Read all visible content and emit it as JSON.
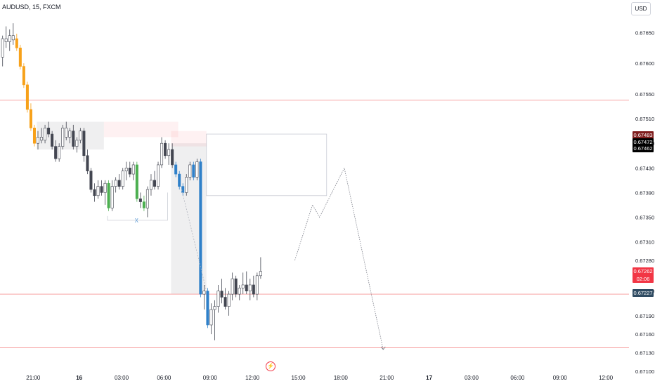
{
  "header": {
    "symbol_label": "AUDUSD, 15, FXCM",
    "currency_button": "USD"
  },
  "colors": {
    "bull": "#ffffff",
    "bear": "#434651",
    "orange": "#f7a11a",
    "green": "#4caf50",
    "blue": "#2f80c9",
    "grey": "#b2b5be",
    "h_line": "#f7a5a5",
    "tag_dark_red": "#7f1d1d",
    "tag_black": "#000000",
    "tag_red": "#f23645",
    "tag_slate": "#2f4b62"
  },
  "icons": {
    "bottom_marker": "lightning-icon"
  },
  "chart_data": {
    "type": "candlestick",
    "y_range": [
      0.6711,
      0.6768
    ],
    "y_ticks": [
      "0.67650",
      "0.67600",
      "0.67550",
      "0.67510",
      "0.67470",
      "0.67430",
      "0.67390",
      "0.67350",
      "0.67310",
      "0.67280",
      "0.67230",
      "0.67190",
      "0.67160",
      "0.67130",
      "0.67100"
    ],
    "x_labels": [
      {
        "label": "21:00",
        "bar": 9,
        "bold": false
      },
      {
        "label": "16",
        "bar": 22,
        "bold": true
      },
      {
        "label": "03:00",
        "bar": 34,
        "bold": false
      },
      {
        "label": "06:00",
        "bar": 46,
        "bold": false
      },
      {
        "label": "09:00",
        "bar": 59,
        "bold": false
      },
      {
        "label": "12:00",
        "bar": 71,
        "bold": false
      },
      {
        "label": "15:00",
        "bar": 84,
        "bold": false
      },
      {
        "label": "18:00",
        "bar": 96,
        "bold": false
      },
      {
        "label": "21:00",
        "bar": 109,
        "bold": false
      },
      {
        "label": "17",
        "bar": 121,
        "bold": true
      },
      {
        "label": "03:00",
        "bar": 133,
        "bold": false
      },
      {
        "label": "06:00",
        "bar": 146,
        "bold": false
      },
      {
        "label": "09:00",
        "bar": 158,
        "bold": false
      },
      {
        "label": "12:00",
        "bar": 171,
        "bold": false
      }
    ],
    "candles": [
      [
        0.6761,
        0.67645,
        0.67595,
        0.6764,
        "bull"
      ],
      [
        0.6764,
        0.6766,
        0.67625,
        0.67635,
        "bull"
      ],
      [
        0.67635,
        0.67655,
        0.6762,
        0.67645,
        "bull"
      ],
      [
        0.67645,
        0.67665,
        0.6763,
        0.67638,
        "bull"
      ],
      [
        0.6764,
        0.67648,
        0.6762,
        0.67625,
        "orange"
      ],
      [
        0.67625,
        0.6763,
        0.6759,
        0.67595,
        "orange"
      ],
      [
        0.67595,
        0.676,
        0.6756,
        0.67565,
        "orange"
      ],
      [
        0.67565,
        0.6757,
        0.6752,
        0.67525,
        "orange"
      ],
      [
        0.67525,
        0.67535,
        0.6749,
        0.67495,
        "orange"
      ],
      [
        0.67495,
        0.675,
        0.67465,
        0.6747,
        "orange"
      ],
      [
        0.6747,
        0.6749,
        0.6746,
        0.6748,
        "bull"
      ],
      [
        0.6748,
        0.67495,
        0.6747,
        0.67475,
        "bull"
      ],
      [
        0.67475,
        0.675,
        0.6747,
        0.67495,
        "bull"
      ],
      [
        0.67495,
        0.67505,
        0.6748,
        0.67485,
        "bear"
      ],
      [
        0.67485,
        0.6749,
        0.6746,
        0.67465,
        "bear"
      ],
      [
        0.67465,
        0.67475,
        0.6744,
        0.67445,
        "bear"
      ],
      [
        0.67445,
        0.6747,
        0.6744,
        0.67465,
        "bull"
      ],
      [
        0.67465,
        0.675,
        0.6746,
        0.67495,
        "bull"
      ],
      [
        0.67495,
        0.67505,
        0.67475,
        0.6748,
        "bull"
      ],
      [
        0.6748,
        0.67495,
        0.6747,
        0.6749,
        "bull"
      ],
      [
        0.6749,
        0.675,
        0.6746,
        0.67465,
        "bear"
      ],
      [
        0.67465,
        0.6748,
        0.67455,
        0.67475,
        "bull"
      ],
      [
        0.67475,
        0.67495,
        0.6747,
        0.6749,
        "bull"
      ],
      [
        0.6749,
        0.67495,
        0.6744,
        0.6745,
        "bear"
      ],
      [
        0.6745,
        0.6746,
        0.6742,
        0.67425,
        "bear"
      ],
      [
        0.67425,
        0.6743,
        0.6739,
        0.67395,
        "bear"
      ],
      [
        0.67395,
        0.67405,
        0.67375,
        0.67385,
        "bear"
      ],
      [
        0.67385,
        0.6741,
        0.6738,
        0.674,
        "bull"
      ],
      [
        0.674,
        0.6741,
        0.67385,
        0.6739,
        "bear"
      ],
      [
        0.6739,
        0.6741,
        0.6737,
        0.67405,
        "bull"
      ],
      [
        0.67405,
        0.6741,
        0.6736,
        0.67365,
        "green"
      ],
      [
        0.67365,
        0.6741,
        0.6736,
        0.674,
        "bull"
      ],
      [
        0.674,
        0.67415,
        0.6739,
        0.6741,
        "bull"
      ],
      [
        0.6741,
        0.6742,
        0.67395,
        0.674,
        "bear"
      ],
      [
        0.674,
        0.6743,
        0.67395,
        0.67425,
        "bull"
      ],
      [
        0.67425,
        0.6744,
        0.6741,
        0.6743,
        "bull"
      ],
      [
        0.6743,
        0.6744,
        0.67415,
        0.6742,
        "bear"
      ],
      [
        0.6742,
        0.6744,
        0.6741,
        0.67435,
        "bull"
      ],
      [
        0.67435,
        0.6744,
        0.67375,
        0.6738,
        "green"
      ],
      [
        0.6738,
        0.6739,
        0.67365,
        0.67375,
        "bear"
      ],
      [
        0.67375,
        0.67385,
        0.6736,
        0.67365,
        "green"
      ],
      [
        0.67365,
        0.674,
        0.6735,
        0.67395,
        "bull"
      ],
      [
        0.67395,
        0.6742,
        0.67385,
        0.6741,
        "bull"
      ],
      [
        0.6741,
        0.67425,
        0.67395,
        0.674,
        "bear"
      ],
      [
        0.674,
        0.6744,
        0.67395,
        0.67435,
        "bull"
      ],
      [
        0.67435,
        0.6748,
        0.6743,
        0.6747,
        "bull"
      ],
      [
        0.6747,
        0.67475,
        0.67445,
        0.6745,
        "bear"
      ],
      [
        0.6745,
        0.6747,
        0.67435,
        0.6746,
        "bull"
      ],
      [
        0.6746,
        0.6747,
        0.6743,
        0.67435,
        "bear"
      ],
      [
        0.67435,
        0.6744,
        0.67415,
        0.6742,
        "blue"
      ],
      [
        0.6742,
        0.67425,
        0.67395,
        0.674,
        "blue"
      ],
      [
        0.674,
        0.67405,
        0.67385,
        0.6739,
        "blue"
      ],
      [
        0.6739,
        0.6742,
        0.67385,
        0.67415,
        "bull"
      ],
      [
        0.67415,
        0.6744,
        0.6741,
        0.67435,
        "bull"
      ],
      [
        0.67435,
        0.6744,
        0.6741,
        0.67415,
        "blue"
      ],
      [
        0.67415,
        0.67445,
        0.6741,
        0.6744,
        "bull"
      ],
      [
        0.6744,
        0.67445,
        0.6722,
        0.67225,
        "blue"
      ],
      [
        0.67225,
        0.6724,
        0.672,
        0.6723,
        "bull"
      ],
      [
        0.6723,
        0.67235,
        0.6717,
        0.67175,
        "blue"
      ],
      [
        0.67175,
        0.6721,
        0.6716,
        0.672,
        "bull"
      ],
      [
        0.672,
        0.67215,
        0.6715,
        0.67205,
        "bull"
      ],
      [
        0.67205,
        0.6724,
        0.67195,
        0.6723,
        "bull"
      ],
      [
        0.6723,
        0.6725,
        0.6721,
        0.6722,
        "bear"
      ],
      [
        0.6722,
        0.67235,
        0.672,
        0.67205,
        "bear"
      ],
      [
        0.67205,
        0.6723,
        0.6719,
        0.67225,
        "bull"
      ],
      [
        0.67225,
        0.6726,
        0.67215,
        0.6725,
        "bull"
      ],
      [
        0.6725,
        0.67255,
        0.6722,
        0.67225,
        "bear"
      ],
      [
        0.67225,
        0.6724,
        0.67215,
        0.67235,
        "bull"
      ],
      [
        0.67235,
        0.6726,
        0.67225,
        0.6724,
        "bull"
      ],
      [
        0.6724,
        0.67262,
        0.67225,
        0.6723,
        "bear"
      ],
      [
        0.6723,
        0.6725,
        0.67215,
        0.6724,
        "bull"
      ],
      [
        0.6724,
        0.67255,
        0.6722,
        0.67225,
        "bear"
      ],
      [
        0.67225,
        0.6726,
        0.67215,
        0.67255,
        "bull"
      ],
      [
        0.67255,
        0.67285,
        0.6725,
        0.67262,
        "bull"
      ]
    ],
    "horizontal_lines": [
      0.6754,
      0.67225,
      0.67138
    ],
    "zones": [
      {
        "from_bar": 10,
        "to_bar": 29,
        "top": 0.67505,
        "bottom": 0.6746,
        "kind": "shade"
      },
      {
        "from_bar": 29,
        "to_bar": 50,
        "top": 0.67505,
        "bottom": 0.6748,
        "kind": "pink"
      },
      {
        "from_bar": 48,
        "to_bar": 58,
        "top": 0.6747,
        "bottom": 0.67225,
        "kind": "shade"
      },
      {
        "from_bar": 58,
        "to_bar": 92,
        "top": 0.67485,
        "bottom": 0.67385,
        "kind": "outline"
      },
      {
        "from_bar": 48,
        "to_bar": 58,
        "top": 0.6749,
        "bottom": 0.67465,
        "kind": "pink"
      }
    ],
    "projection_path": [
      {
        "bar": 83,
        "price": 0.6728
      },
      {
        "bar": 88,
        "price": 0.6737
      },
      {
        "bar": 90,
        "price": 0.6735
      },
      {
        "bar": 97,
        "price": 0.6743
      },
      {
        "bar": 108,
        "price": 0.67135
      }
    ],
    "dotted_segment": [
      {
        "bar": 51,
        "price": 0.67395
      },
      {
        "bar": 58,
        "price": 0.6723
      }
    ],
    "bracket": {
      "from_bar": 30,
      "to_bar": 47,
      "y_top": 0.6739,
      "y_bottom": 0.67345,
      "label": "X"
    },
    "price_tags": [
      {
        "price": 0.67483,
        "text": "0.67483",
        "style": "tag_dark_red"
      },
      {
        "price": 0.67472,
        "text": "0.67472",
        "style": "tag_black"
      },
      {
        "price": 0.67462,
        "text": "0.67462",
        "style": "tag_black"
      },
      {
        "price": 0.67262,
        "text": "0.67262",
        "sub": "02:06",
        "style": "tag_red"
      },
      {
        "price": 0.67227,
        "text": "0.67227",
        "style": "tag_slate"
      }
    ]
  }
}
